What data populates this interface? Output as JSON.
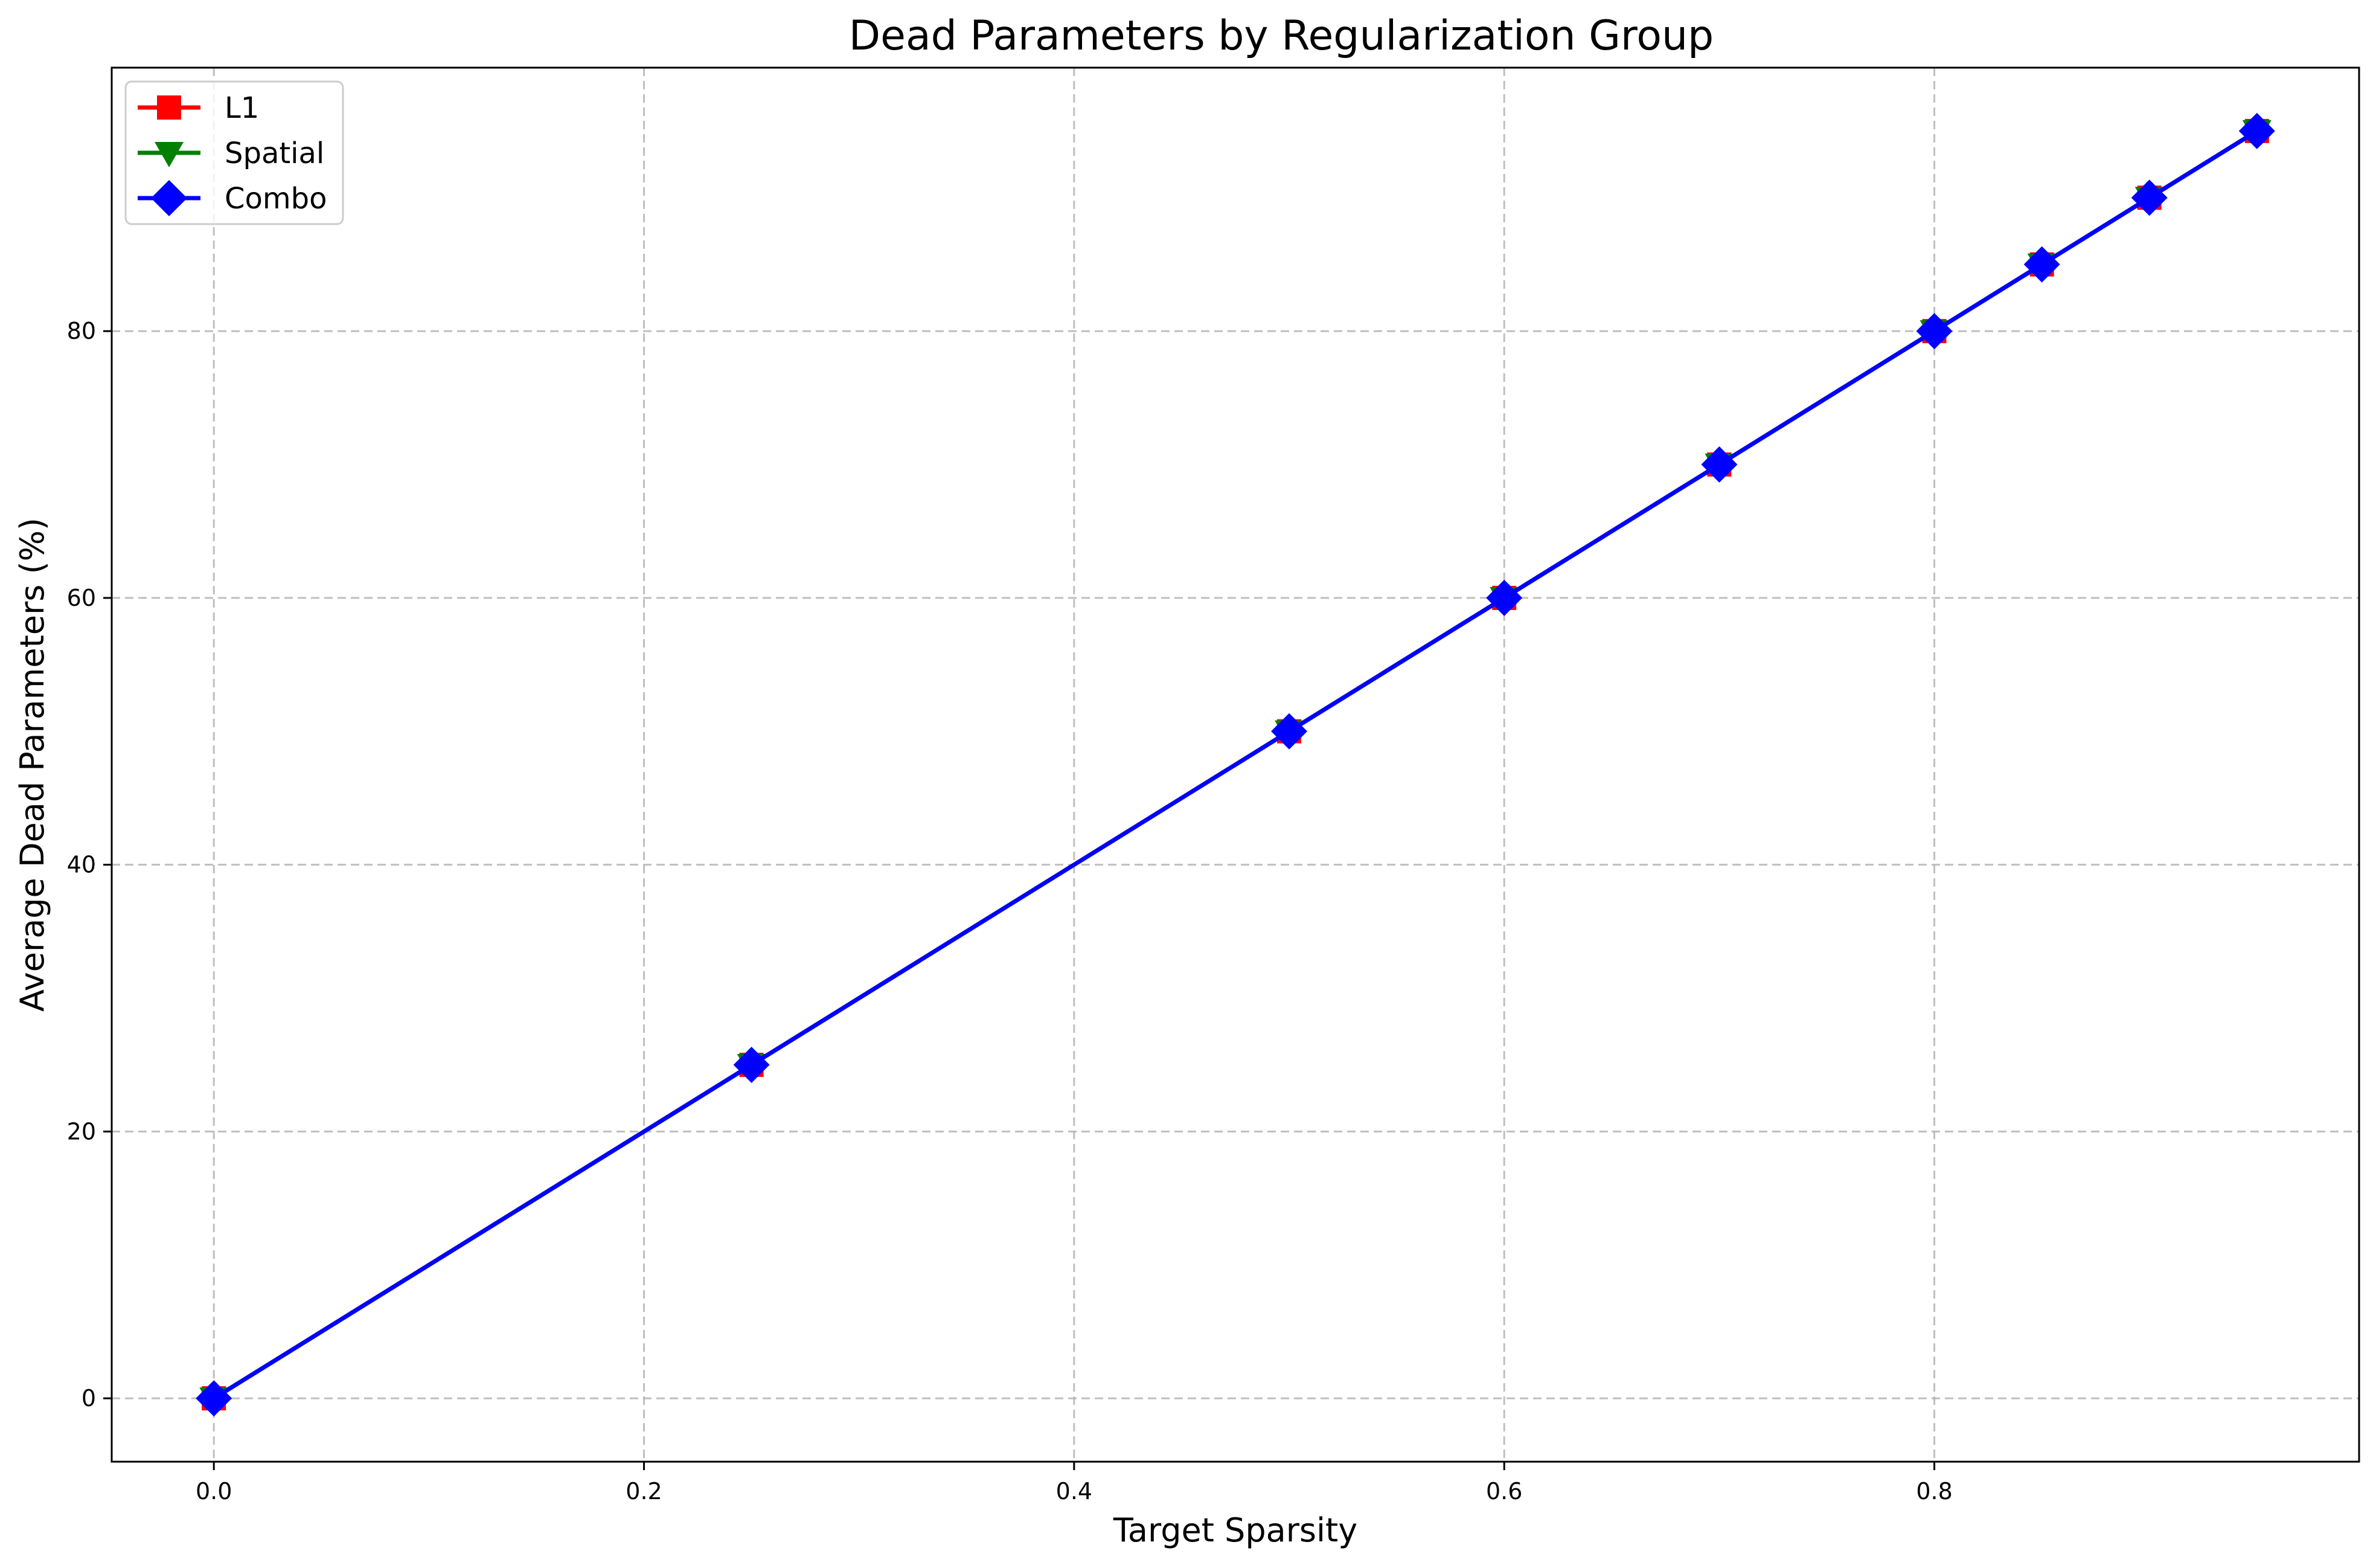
{
  "chart_data": {
    "type": "line",
    "title": "Dead Parameters by Regularization Group",
    "xlabel": "Target Sparsity",
    "ylabel": "Average Dead Parameters (%)",
    "xlim": [
      -0.0475,
      0.9975
    ],
    "ylim": [
      -4.75,
      99.75
    ],
    "x_ticks": [
      0.0,
      0.2,
      0.4,
      0.6,
      0.8
    ],
    "x_tick_labels": [
      "0.0",
      "0.2",
      "0.4",
      "0.6",
      "0.8"
    ],
    "y_ticks": [
      0,
      20,
      40,
      60,
      80
    ],
    "y_tick_labels": [
      "0",
      "20",
      "40",
      "60",
      "80"
    ],
    "grid": true,
    "legend_position": "top-left",
    "x": [
      0.0,
      0.25,
      0.5,
      0.6,
      0.7,
      0.8,
      0.85,
      0.9,
      0.95
    ],
    "series": [
      {
        "name": "L1",
        "color": "#ff0000",
        "marker": "square",
        "values": [
          0,
          25,
          50,
          60,
          70,
          80,
          85,
          90,
          95
        ]
      },
      {
        "name": "Spatial",
        "color": "#008000",
        "marker": "triangle-down",
        "values": [
          0,
          25,
          50,
          60,
          70,
          80,
          85,
          90,
          95
        ]
      },
      {
        "name": "Combo",
        "color": "#0000ff",
        "marker": "diamond",
        "values": [
          0,
          25,
          50,
          60,
          70,
          80,
          85,
          90,
          95
        ]
      }
    ]
  }
}
